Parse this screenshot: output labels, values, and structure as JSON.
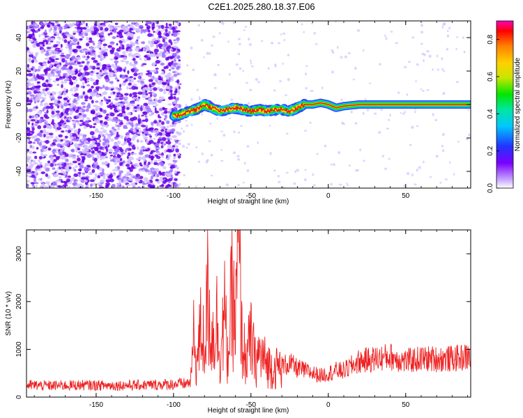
{
  "title": "C2E1.2025.280.18.37.E06",
  "colors": {
    "trace": "#ee2222",
    "noise_dark": "#6a00e8",
    "noise_light": "#d2c2ff"
  },
  "chart_data": [
    {
      "type": "heatmap",
      "xlabel": "Height of straight line (km)",
      "ylabel": "Frequency (Hz)",
      "xlim": [
        -195,
        92
      ],
      "ylim": [
        -50,
        50
      ],
      "x_ticks": [
        -150,
        -100,
        -50,
        0,
        50
      ],
      "y_ticks": [
        -40,
        -20,
        0,
        20,
        40
      ],
      "colorbar": {
        "label": "Normalized spectral amplitude",
        "range": [
          0,
          0.9
        ],
        "ticks": [
          "0.0",
          "0.2",
          "0.4",
          "0.6",
          "0.8"
        ],
        "tick_values": [
          0,
          0.2,
          0.4,
          0.6,
          0.8
        ]
      },
      "ridge_frequency_hz": {
        "x": [
          -100,
          -95,
          -90,
          -85,
          -80,
          -75,
          -70,
          -65,
          -60,
          -55,
          -50,
          -45,
          -40,
          -35,
          -30,
          -25,
          -20,
          -15,
          -10,
          -5,
          0,
          5,
          10,
          20,
          40,
          60,
          92
        ],
        "y": [
          -7,
          -6,
          -4,
          -3,
          0,
          -2,
          -4,
          -3,
          -2,
          -3,
          -4,
          -3,
          -4,
          -3,
          -3,
          -4,
          -2,
          0,
          0,
          1,
          0,
          -2,
          -1,
          0,
          0,
          0,
          0
        ]
      }
    },
    {
      "type": "line",
      "xlabel": "Height of straight line (km)",
      "ylabel": "SNR (10 * v/v)",
      "xlim": [
        -195,
        92
      ],
      "ylim": [
        0,
        3500
      ],
      "x_ticks": [
        -150,
        -100,
        -50,
        0,
        50
      ],
      "y_ticks": [
        0,
        1000,
        2000,
        3000
      ],
      "series": [
        {
          "color": "#ee2222",
          "x": [
            -195,
            -180,
            -160,
            -140,
            -120,
            -100,
            -92,
            -89,
            -87,
            -85,
            -82,
            -80,
            -78,
            -75,
            -72,
            -70,
            -67,
            -65,
            -62,
            -60,
            -58,
            -57,
            -56,
            -55,
            -53,
            -50,
            -47,
            -45,
            -42,
            -40,
            -35,
            -30,
            -25,
            -20,
            -15,
            -10,
            -5,
            0,
            5,
            10,
            15,
            20,
            30,
            40,
            50,
            60,
            70,
            80,
            92
          ],
          "y": [
            250,
            240,
            250,
            245,
            250,
            270,
            280,
            320,
            1200,
            700,
            1500,
            1000,
            2100,
            1200,
            1600,
            900,
            1700,
            800,
            2200,
            1400,
            3400,
            2300,
            1300,
            1000,
            800,
            1200,
            700,
            900,
            800,
            700,
            600,
            650,
            700,
            600,
            550,
            500,
            450,
            500,
            550,
            550,
            650,
            750,
            800,
            850,
            750,
            800,
            800,
            800,
            850
          ]
        }
      ]
    }
  ]
}
